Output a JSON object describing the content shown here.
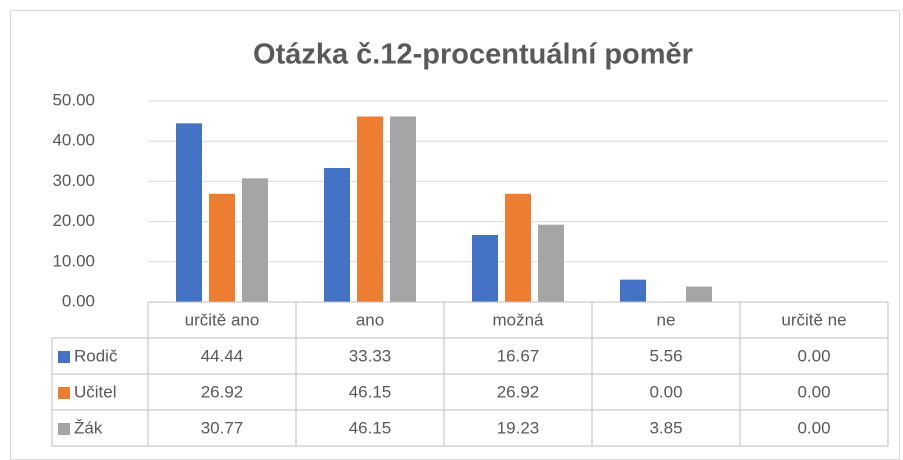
{
  "chart_data": {
    "type": "bar",
    "title": "Otázka č.12-procentuální poměr",
    "categories": [
      "určitě ano",
      "ano",
      "možná",
      "ne",
      "určitě ne"
    ],
    "series": [
      {
        "name": "Rodič",
        "color": "#4472c4",
        "values": [
          44.44,
          33.33,
          16.67,
          5.56,
          0
        ],
        "value_labels": [
          "44.44",
          "33.33",
          "16.67",
          "5.56",
          "0.00"
        ]
      },
      {
        "name": "Učitel",
        "color": "#ed7d31",
        "values": [
          26.92,
          46.15,
          26.92,
          0,
          0
        ],
        "value_labels": [
          "26.92",
          "46.15",
          "26.92",
          "0.00",
          "0.00"
        ]
      },
      {
        "name": "Žák",
        "color": "#a5a5a5",
        "values": [
          30.77,
          46.15,
          19.23,
          3.85,
          0
        ],
        "value_labels": [
          "30.77",
          "46.15",
          "19.23",
          "3.85",
          "0.00"
        ]
      }
    ],
    "ylim": [
      0,
      50
    ],
    "yticks": [
      {
        "value": 0,
        "label": "0.00"
      },
      {
        "value": 10,
        "label": "10.00"
      },
      {
        "value": 20,
        "label": "20.00"
      },
      {
        "value": 30,
        "label": "30.00"
      },
      {
        "value": 40,
        "label": "40.00"
      },
      {
        "value": 50,
        "label": "50.00"
      }
    ],
    "grid": true
  }
}
